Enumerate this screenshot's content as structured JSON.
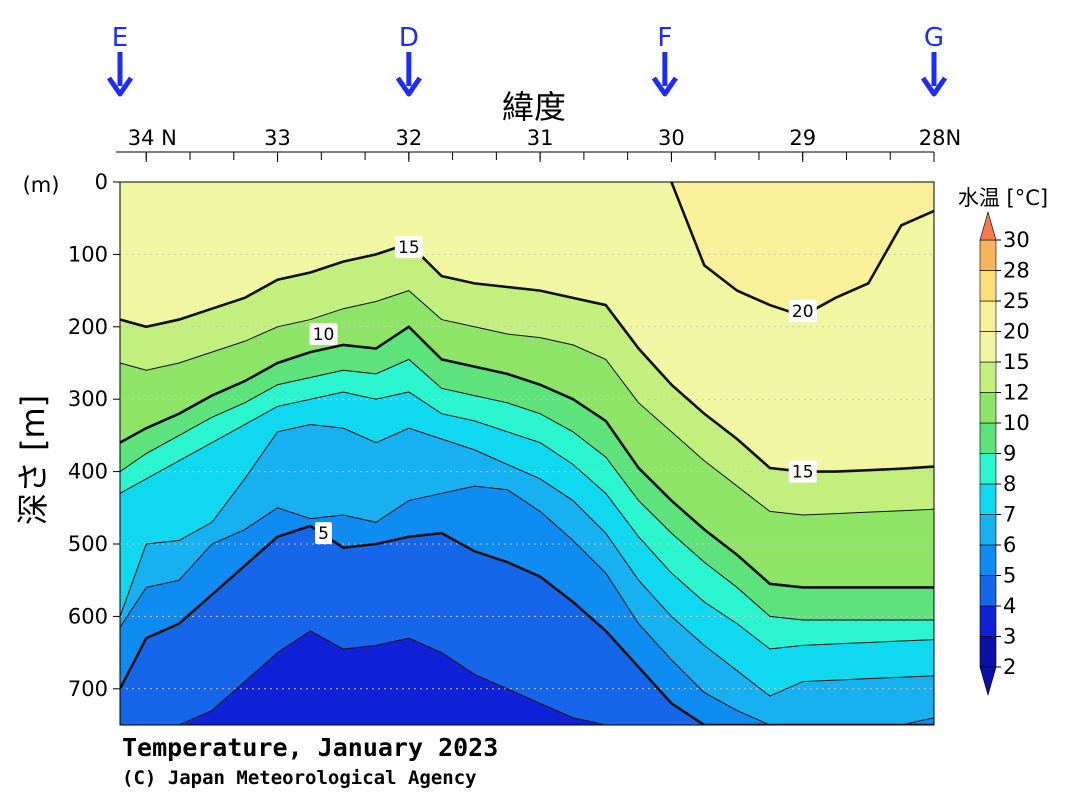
{
  "chart_data": {
    "type": "heatmap",
    "title": "Temperature, January 2023",
    "credit": "(C) Japan Meteorological Agency",
    "xlabel": "緯度",
    "ylabel": "深さ [m]",
    "y_unit_label": "(m)",
    "x_ticks": [
      {
        "value": 34,
        "label": "34 N"
      },
      {
        "value": 33,
        "label": "33"
      },
      {
        "value": 32,
        "label": "32"
      },
      {
        "value": 31,
        "label": "31"
      },
      {
        "value": 30,
        "label": "30"
      },
      {
        "value": 29,
        "label": "29"
      },
      {
        "value": 28,
        "label": "28N"
      }
    ],
    "xlim": [
      34.2,
      28
    ],
    "y_ticks": [
      0,
      100,
      200,
      300,
      400,
      500,
      600,
      700
    ],
    "ylim": [
      0,
      750
    ],
    "stations": [
      {
        "name": "E",
        "lat": 34.2
      },
      {
        "name": "D",
        "lat": 32.0
      },
      {
        "name": "F",
        "lat": 30.05
      },
      {
        "name": "G",
        "lat": 28.0
      }
    ],
    "legend": {
      "title": "水温 [°C]",
      "levels": [
        2,
        3,
        4,
        5,
        6,
        7,
        8,
        9,
        10,
        12,
        15,
        20,
        25,
        28,
        30
      ],
      "level_labels": [
        "2",
        "3",
        "4",
        "5",
        "6",
        "7",
        "8",
        "9",
        "10",
        "12",
        "15",
        "20",
        "25",
        "28",
        "30"
      ],
      "colors": [
        "#0a0fa8",
        "#0f22d8",
        "#1566e8",
        "#0e8cf2",
        "#17b0f0",
        "#10d8ee",
        "#2bf5cf",
        "#5ee27b",
        "#8ee467",
        "#c2ef7e",
        "#f0f6a2",
        "#fbf09a",
        "#fbe07a",
        "#f7b45a",
        "#f27b4e"
      ]
    },
    "x_columns": [
      34.2,
      34.0,
      33.75,
      33.5,
      33.25,
      33.0,
      32.75,
      32.5,
      32.25,
      32.0,
      31.75,
      31.5,
      31.25,
      31.0,
      30.75,
      30.5,
      30.25,
      30.0,
      29.75,
      29.5,
      29.25,
      29.0,
      28.75,
      28.5,
      28.25,
      28.0
    ],
    "isotherms": [
      {
        "temp": 20,
        "depths": [
          null,
          null,
          null,
          null,
          null,
          null,
          null,
          null,
          null,
          null,
          null,
          null,
          null,
          null,
          null,
          null,
          null,
          0,
          115,
          150,
          170,
          185,
          160,
          140,
          60,
          40
        ]
      },
      {
        "temp": 15,
        "depths": [
          190,
          200,
          190,
          175,
          160,
          135,
          125,
          110,
          100,
          85,
          130,
          140,
          145,
          150,
          160,
          170,
          230,
          280,
          320,
          355,
          395,
          400,
          400,
          398,
          396,
          393
        ]
      },
      {
        "temp": 12,
        "depths": [
          250,
          260,
          250,
          235,
          220,
          200,
          190,
          175,
          165,
          150,
          190,
          200,
          210,
          215,
          225,
          245,
          305,
          345,
          385,
          420,
          455,
          460,
          458,
          456,
          454,
          452
        ]
      },
      {
        "temp": 10,
        "depths": [
          360,
          340,
          320,
          295,
          275,
          250,
          235,
          225,
          230,
          200,
          245,
          255,
          265,
          280,
          300,
          330,
          395,
          440,
          480,
          515,
          555,
          560,
          560,
          560,
          560,
          560
        ]
      },
      {
        "temp": 9,
        "depths": [
          400,
          375,
          350,
          325,
          305,
          280,
          270,
          260,
          265,
          245,
          285,
          295,
          305,
          320,
          345,
          380,
          440,
          485,
          525,
          560,
          600,
          605,
          605,
          605,
          605,
          605
        ]
      },
      {
        "temp": 8,
        "depths": [
          430,
          410,
          385,
          360,
          335,
          310,
          300,
          290,
          300,
          290,
          320,
          330,
          345,
          360,
          390,
          430,
          490,
          540,
          580,
          610,
          645,
          640,
          638,
          636,
          634,
          632
        ]
      },
      {
        "temp": 7,
        "depths": [
          600,
          500,
          495,
          470,
          410,
          345,
          335,
          340,
          360,
          340,
          355,
          370,
          390,
          410,
          440,
          485,
          550,
          600,
          640,
          675,
          710,
          690,
          688,
          686,
          684,
          682
        ]
      },
      {
        "temp": 6,
        "depths": [
          615,
          560,
          550,
          500,
          480,
          450,
          465,
          460,
          470,
          440,
          430,
          420,
          425,
          455,
          495,
          540,
          610,
          660,
          705,
          730,
          750,
          750,
          750,
          750,
          750,
          740
        ]
      },
      {
        "temp": 5,
        "depths": [
          700,
          630,
          610,
          570,
          530,
          490,
          475,
          505,
          500,
          490,
          485,
          510,
          525,
          545,
          580,
          620,
          670,
          720,
          750,
          750,
          750,
          750,
          750,
          750,
          750,
          750
        ]
      },
      {
        "temp": 4,
        "depths": [
          750,
          750,
          750,
          730,
          690,
          650,
          620,
          645,
          640,
          630,
          650,
          680,
          700,
          720,
          740,
          750,
          750,
          750,
          750,
          750,
          750,
          750,
          750,
          750,
          750,
          750
        ]
      }
    ],
    "contour_labels": [
      {
        "text": "15",
        "lat": 32.0,
        "depth": 90
      },
      {
        "text": "10",
        "lat": 32.65,
        "depth": 210
      },
      {
        "text": "20",
        "lat": 29.0,
        "depth": 178
      },
      {
        "text": "15",
        "lat": 29.0,
        "depth": 400
      },
      {
        "text": "5",
        "lat": 32.65,
        "depth": 485
      }
    ]
  }
}
